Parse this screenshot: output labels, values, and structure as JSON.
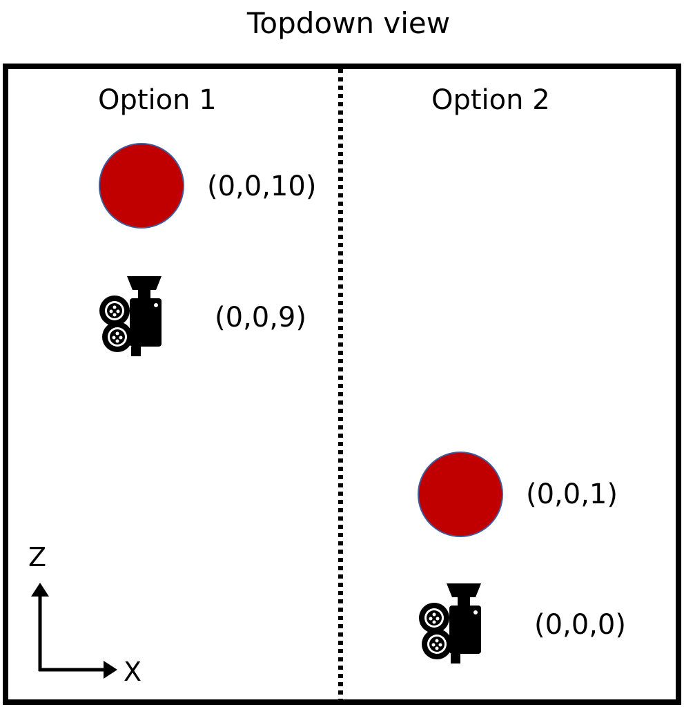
{
  "title": "Topdown view",
  "options": [
    {
      "label": "Option 1",
      "ball_coord": "(0,0,10)",
      "camera_coord": "(0,0,9)"
    },
    {
      "label": "Option 2",
      "ball_coord": "(0,0,1)",
      "camera_coord": "(0,0,0)"
    }
  ],
  "axes": {
    "vertical": "Z",
    "horizontal": "X"
  },
  "colors": {
    "ball_fill": "#c00000",
    "ball_outline": "#3f5b9b",
    "frame": "#000000"
  },
  "icons": {
    "object": "red-ball-icon",
    "camera": "movie-camera-icon"
  }
}
